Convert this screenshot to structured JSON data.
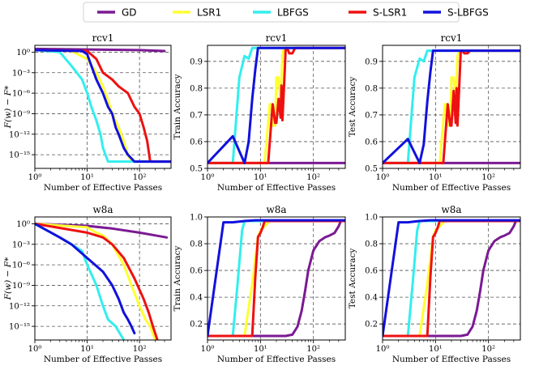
{
  "legend": [
    {
      "name": "GD",
      "color": "#7b1a93"
    },
    {
      "name": "LSR1",
      "color": "#ffff33"
    },
    {
      "name": "LBFGS",
      "color": "#33eeee"
    },
    {
      "name": "S-LSR1",
      "color": "#ee1111"
    },
    {
      "name": "S-LBFGS",
      "color": "#1111dd"
    }
  ],
  "chart_data": [
    {
      "type": "line",
      "title": "rcv1",
      "xlabel": "Number of Effective Passes",
      "ylabel": "F(w) − F*",
      "xscale": "log",
      "yscale": "log",
      "xlim": [
        1,
        400
      ],
      "ylim": [
        1e-17,
        10
      ],
      "xticks": [
        {
          "v": 1,
          "label": "10⁰"
        },
        {
          "v": 10,
          "label": "10¹"
        },
        {
          "v": 100,
          "label": "10²"
        }
      ],
      "yticks": [
        {
          "v": 1,
          "label": "10⁰"
        },
        {
          "v": 0.001,
          "label": "10⁻³"
        },
        {
          "v": 1e-06,
          "label": "10⁻⁶"
        },
        {
          "v": 1e-09,
          "label": "10⁻⁹"
        },
        {
          "v": 1e-12,
          "label": "10⁻¹²"
        },
        {
          "v": 1e-15,
          "label": "10⁻¹⁵"
        }
      ],
      "series": [
        {
          "name": "GD",
          "x": [
            1,
            10,
            100,
            300
          ],
          "y": [
            3,
            2.5,
            2,
            1.5
          ]
        },
        {
          "name": "LSR1",
          "x": [
            1,
            5,
            10,
            15,
            20,
            25,
            30,
            40,
            50,
            60,
            70
          ],
          "y": [
            2,
            1.5,
            0.1,
            0.001,
            1e-05,
            1e-07,
            1e-09,
            1e-11,
            1e-13,
            1e-15,
            1e-16
          ]
        },
        {
          "name": "LBFGS",
          "x": [
            1,
            3,
            5,
            8,
            10,
            12,
            15,
            18,
            20,
            25,
            30,
            400
          ],
          "y": [
            2,
            1,
            0.01,
            0.0001,
            1e-06,
            1e-08,
            1e-10,
            1e-12,
            1e-14,
            1e-16,
            1e-16,
            1e-16
          ]
        },
        {
          "name": "S-LSR1",
          "x": [
            1,
            10,
            15,
            20,
            30,
            40,
            60,
            80,
            100,
            120,
            140,
            160,
            400
          ],
          "y": [
            2,
            1.5,
            0.1,
            0.001,
            0.0001,
            1e-05,
            1e-06,
            1e-08,
            1e-09,
            1e-11,
            1e-13,
            1e-16,
            1e-16
          ]
        },
        {
          "name": "S-LBFGS",
          "x": [
            1,
            8,
            10,
            12,
            15,
            20,
            25,
            30,
            35,
            40,
            50,
            60,
            80,
            100,
            400
          ],
          "y": [
            2,
            1.5,
            0.5,
            0.01,
            0.0001,
            1e-06,
            1e-08,
            1e-09,
            1e-11,
            1e-12,
            1e-14,
            1e-15,
            1e-16,
            1e-16,
            1e-16
          ]
        }
      ]
    },
    {
      "type": "line",
      "title": "rcv1",
      "xlabel": "Number of Effective Passes",
      "ylabel": "Train Accuracy",
      "xscale": "log",
      "yscale": "linear",
      "xlim": [
        1,
        400
      ],
      "ylim": [
        0.5,
        0.96
      ],
      "xticks": [
        {
          "v": 1,
          "label": "10⁰"
        },
        {
          "v": 10,
          "label": "10¹"
        },
        {
          "v": 100,
          "label": "10²"
        }
      ],
      "yticks": [
        {
          "v": 0.5,
          "label": "0.5"
        },
        {
          "v": 0.6,
          "label": "0.6"
        },
        {
          "v": 0.7,
          "label": "0.7"
        },
        {
          "v": 0.8,
          "label": "0.8"
        },
        {
          "v": 0.9,
          "label": "0.9"
        }
      ],
      "series": [
        {
          "name": "GD",
          "x": [
            1,
            400
          ],
          "y": [
            0.52,
            0.52
          ]
        },
        {
          "name": "LSR1",
          "x": [
            1,
            12,
            15,
            16,
            17,
            19,
            20,
            22,
            24,
            26,
            28,
            400
          ],
          "y": [
            0.52,
            0.52,
            0.74,
            0.74,
            0.66,
            0.66,
            0.84,
            0.84,
            0.75,
            0.92,
            0.95,
            0.95
          ]
        },
        {
          "name": "LBFGS",
          "x": [
            1,
            3,
            4,
            5,
            6,
            7,
            8,
            400
          ],
          "y": [
            0.52,
            0.52,
            0.84,
            0.92,
            0.91,
            0.95,
            0.95,
            0.95
          ]
        },
        {
          "name": "S-LSR1",
          "x": [
            1,
            12,
            14,
            17,
            19,
            20,
            22,
            24,
            25,
            26,
            28,
            30,
            32,
            35,
            40,
            45,
            400
          ],
          "y": [
            0.52,
            0.52,
            0.52,
            0.74,
            0.67,
            0.67,
            0.76,
            0.69,
            0.81,
            0.68,
            0.81,
            0.95,
            0.95,
            0.93,
            0.93,
            0.95,
            0.95
          ]
        },
        {
          "name": "S-LBFGS",
          "x": [
            1,
            3,
            5,
            6,
            7,
            8,
            9,
            400
          ],
          "y": [
            0.52,
            0.62,
            0.52,
            0.6,
            0.76,
            0.87,
            0.95,
            0.95
          ]
        }
      ]
    },
    {
      "type": "line",
      "title": "rcv1",
      "xlabel": "Number of Effective Passes",
      "ylabel": "Test Accuracy",
      "xscale": "log",
      "yscale": "linear",
      "xlim": [
        1,
        400
      ],
      "ylim": [
        0.5,
        0.96
      ],
      "xticks": [
        {
          "v": 1,
          "label": "10⁰"
        },
        {
          "v": 10,
          "label": "10¹"
        },
        {
          "v": 100,
          "label": "10²"
        }
      ],
      "yticks": [
        {
          "v": 0.5,
          "label": "0.5"
        },
        {
          "v": 0.6,
          "label": "0.6"
        },
        {
          "v": 0.7,
          "label": "0.7"
        },
        {
          "v": 0.8,
          "label": "0.8"
        },
        {
          "v": 0.9,
          "label": "0.9"
        }
      ],
      "series": [
        {
          "name": "GD",
          "x": [
            1,
            400
          ],
          "y": [
            0.52,
            0.52
          ]
        },
        {
          "name": "LSR1",
          "x": [
            1,
            12,
            15,
            16,
            17,
            19,
            20,
            22,
            24,
            26,
            28,
            400
          ],
          "y": [
            0.52,
            0.52,
            0.74,
            0.74,
            0.66,
            0.66,
            0.84,
            0.84,
            0.75,
            0.92,
            0.94,
            0.94
          ]
        },
        {
          "name": "LBFGS",
          "x": [
            1,
            3,
            4,
            5,
            6,
            7,
            8,
            400
          ],
          "y": [
            0.52,
            0.52,
            0.84,
            0.91,
            0.9,
            0.94,
            0.94,
            0.94
          ]
        },
        {
          "name": "S-LSR1",
          "x": [
            1,
            12,
            14,
            17,
            19,
            20,
            22,
            24,
            25,
            26,
            28,
            30,
            32,
            35,
            40,
            45,
            400
          ],
          "y": [
            0.52,
            0.52,
            0.52,
            0.74,
            0.66,
            0.66,
            0.79,
            0.67,
            0.8,
            0.66,
            0.8,
            0.94,
            0.94,
            0.93,
            0.93,
            0.94,
            0.94
          ]
        },
        {
          "name": "S-LBFGS",
          "x": [
            1,
            3,
            5,
            6,
            7,
            8,
            9,
            400
          ],
          "y": [
            0.52,
            0.61,
            0.52,
            0.59,
            0.75,
            0.86,
            0.94,
            0.94
          ]
        }
      ]
    },
    {
      "type": "line",
      "title": "w8a",
      "xlabel": "Number of Effective Passes",
      "ylabel": "F(w) − F*",
      "xscale": "log",
      "yscale": "log",
      "xlim": [
        1,
        400
      ],
      "ylim": [
        1e-17,
        10
      ],
      "xticks": [
        {
          "v": 1,
          "label": "10⁰"
        },
        {
          "v": 10,
          "label": "10¹"
        },
        {
          "v": 100,
          "label": "10²"
        }
      ],
      "yticks": [
        {
          "v": 1,
          "label": "10⁰"
        },
        {
          "v": 0.001,
          "label": "10⁻³"
        },
        {
          "v": 1e-06,
          "label": "10⁻⁶"
        },
        {
          "v": 1e-09,
          "label": "10⁻⁹"
        },
        {
          "v": 1e-12,
          "label": "10⁻¹²"
        },
        {
          "v": 1e-15,
          "label": "10⁻¹⁵"
        }
      ],
      "series": [
        {
          "name": "GD",
          "x": [
            1,
            10,
            30,
            100,
            200,
            330
          ],
          "y": [
            1,
            0.5,
            0.2,
            0.05,
            0.02,
            0.01
          ]
        },
        {
          "name": "LSR1",
          "x": [
            1,
            10,
            15,
            20,
            30,
            50,
            70,
            100,
            130,
            160,
            200
          ],
          "y": [
            1,
            0.3,
            0.05,
            0.02,
            0.001,
            1e-06,
            1e-09,
            1e-12,
            1e-14,
            1e-15,
            1e-17
          ]
        },
        {
          "name": "LBFGS",
          "x": [
            1,
            3,
            5,
            8,
            10,
            15,
            20,
            25,
            35,
            50
          ],
          "y": [
            1,
            0.01,
            0.001,
            0.0001,
            1e-06,
            1e-09,
            1e-12,
            1e-14,
            1e-15,
            1e-17
          ]
        },
        {
          "name": "S-LSR1",
          "x": [
            1,
            10,
            15,
            20,
            30,
            50,
            80,
            120,
            150,
            180,
            220
          ],
          "y": [
            1,
            0.05,
            0.02,
            0.01,
            0.001,
            1e-05,
            1e-08,
            1e-11,
            1e-13,
            1e-15,
            1e-17
          ]
        },
        {
          "name": "S-LBFGS",
          "x": [
            1,
            3,
            5,
            10,
            20,
            30,
            40,
            50,
            60,
            70,
            80
          ],
          "y": [
            1,
            0.01,
            0.001,
            1e-05,
            1e-07,
            1e-09,
            1e-11,
            1e-13,
            1e-14,
            1e-15,
            1e-16
          ]
        }
      ]
    },
    {
      "type": "line",
      "title": "w8a",
      "xlabel": "Number of Effective Passes",
      "ylabel": "Train Accuracy",
      "xscale": "log",
      "yscale": "linear",
      "xlim": [
        1,
        400
      ],
      "ylim": [
        0.08,
        1.0
      ],
      "xticks": [
        {
          "v": 1,
          "label": "10⁰"
        },
        {
          "v": 10,
          "label": "10¹"
        },
        {
          "v": 100,
          "label": "10²"
        }
      ],
      "yticks": [
        {
          "v": 0.2,
          "label": "0.2"
        },
        {
          "v": 0.4,
          "label": "0.4"
        },
        {
          "v": 0.6,
          "label": "0.6"
        },
        {
          "v": 0.8,
          "label": "0.8"
        },
        {
          "v": 1.0,
          "label": "1.0"
        }
      ],
      "series": [
        {
          "name": "GD",
          "x": [
            1,
            30,
            40,
            50,
            60,
            70,
            80,
            100,
            130,
            170,
            200,
            250,
            300,
            330,
            400
          ],
          "y": [
            0.11,
            0.11,
            0.12,
            0.18,
            0.3,
            0.45,
            0.6,
            0.75,
            0.82,
            0.85,
            0.86,
            0.88,
            0.93,
            0.97,
            0.97
          ]
        },
        {
          "name": "LSR1",
          "x": [
            1,
            5,
            7,
            9,
            10,
            12,
            15,
            400
          ],
          "y": [
            0.11,
            0.11,
            0.5,
            0.85,
            0.9,
            0.93,
            0.97,
            0.97
          ]
        },
        {
          "name": "LBFGS",
          "x": [
            1,
            3,
            3.7,
            4.5,
            5,
            400
          ],
          "y": [
            0.11,
            0.11,
            0.5,
            0.9,
            0.97,
            0.97
          ]
        },
        {
          "name": "S-LSR1",
          "x": [
            1,
            7,
            8,
            9,
            10,
            11,
            12,
            400
          ],
          "y": [
            0.11,
            0.11,
            0.55,
            0.85,
            0.88,
            0.92,
            0.97,
            0.97
          ]
        },
        {
          "name": "S-LBFGS",
          "x": [
            1,
            2,
            3,
            5,
            8,
            400
          ],
          "y": [
            0.11,
            0.96,
            0.96,
            0.97,
            0.975,
            0.975
          ]
        }
      ]
    },
    {
      "type": "line",
      "title": "w8a",
      "xlabel": "Number of Effective Passes",
      "ylabel": "Test Accuracy",
      "xscale": "log",
      "yscale": "linear",
      "xlim": [
        1,
        400
      ],
      "ylim": [
        0.08,
        1.0
      ],
      "xticks": [
        {
          "v": 1,
          "label": "10⁰"
        },
        {
          "v": 10,
          "label": "10¹"
        },
        {
          "v": 100,
          "label": "10²"
        }
      ],
      "yticks": [
        {
          "v": 0.2,
          "label": "0.2"
        },
        {
          "v": 0.4,
          "label": "0.4"
        },
        {
          "v": 0.6,
          "label": "0.6"
        },
        {
          "v": 0.8,
          "label": "0.8"
        },
        {
          "v": 1.0,
          "label": "1.0"
        }
      ],
      "series": [
        {
          "name": "GD",
          "x": [
            1,
            30,
            40,
            50,
            60,
            70,
            80,
            100,
            130,
            170,
            200,
            250,
            300,
            330,
            400
          ],
          "y": [
            0.11,
            0.11,
            0.12,
            0.18,
            0.3,
            0.45,
            0.6,
            0.75,
            0.82,
            0.85,
            0.86,
            0.88,
            0.93,
            0.97,
            0.97
          ]
        },
        {
          "name": "LSR1",
          "x": [
            1,
            5,
            7,
            9,
            10,
            12,
            15,
            400
          ],
          "y": [
            0.11,
            0.11,
            0.5,
            0.85,
            0.9,
            0.93,
            0.97,
            0.97
          ]
        },
        {
          "name": "LBFGS",
          "x": [
            1,
            3,
            3.7,
            4.5,
            5,
            400
          ],
          "y": [
            0.11,
            0.11,
            0.5,
            0.9,
            0.97,
            0.97
          ]
        },
        {
          "name": "S-LSR1",
          "x": [
            1,
            7,
            8,
            9,
            10,
            11,
            12,
            400
          ],
          "y": [
            0.11,
            0.11,
            0.55,
            0.85,
            0.88,
            0.92,
            0.97,
            0.97
          ]
        },
        {
          "name": "S-LBFGS",
          "x": [
            1,
            2,
            3,
            5,
            8,
            400
          ],
          "y": [
            0.11,
            0.96,
            0.96,
            0.97,
            0.975,
            0.975
          ]
        }
      ]
    }
  ]
}
